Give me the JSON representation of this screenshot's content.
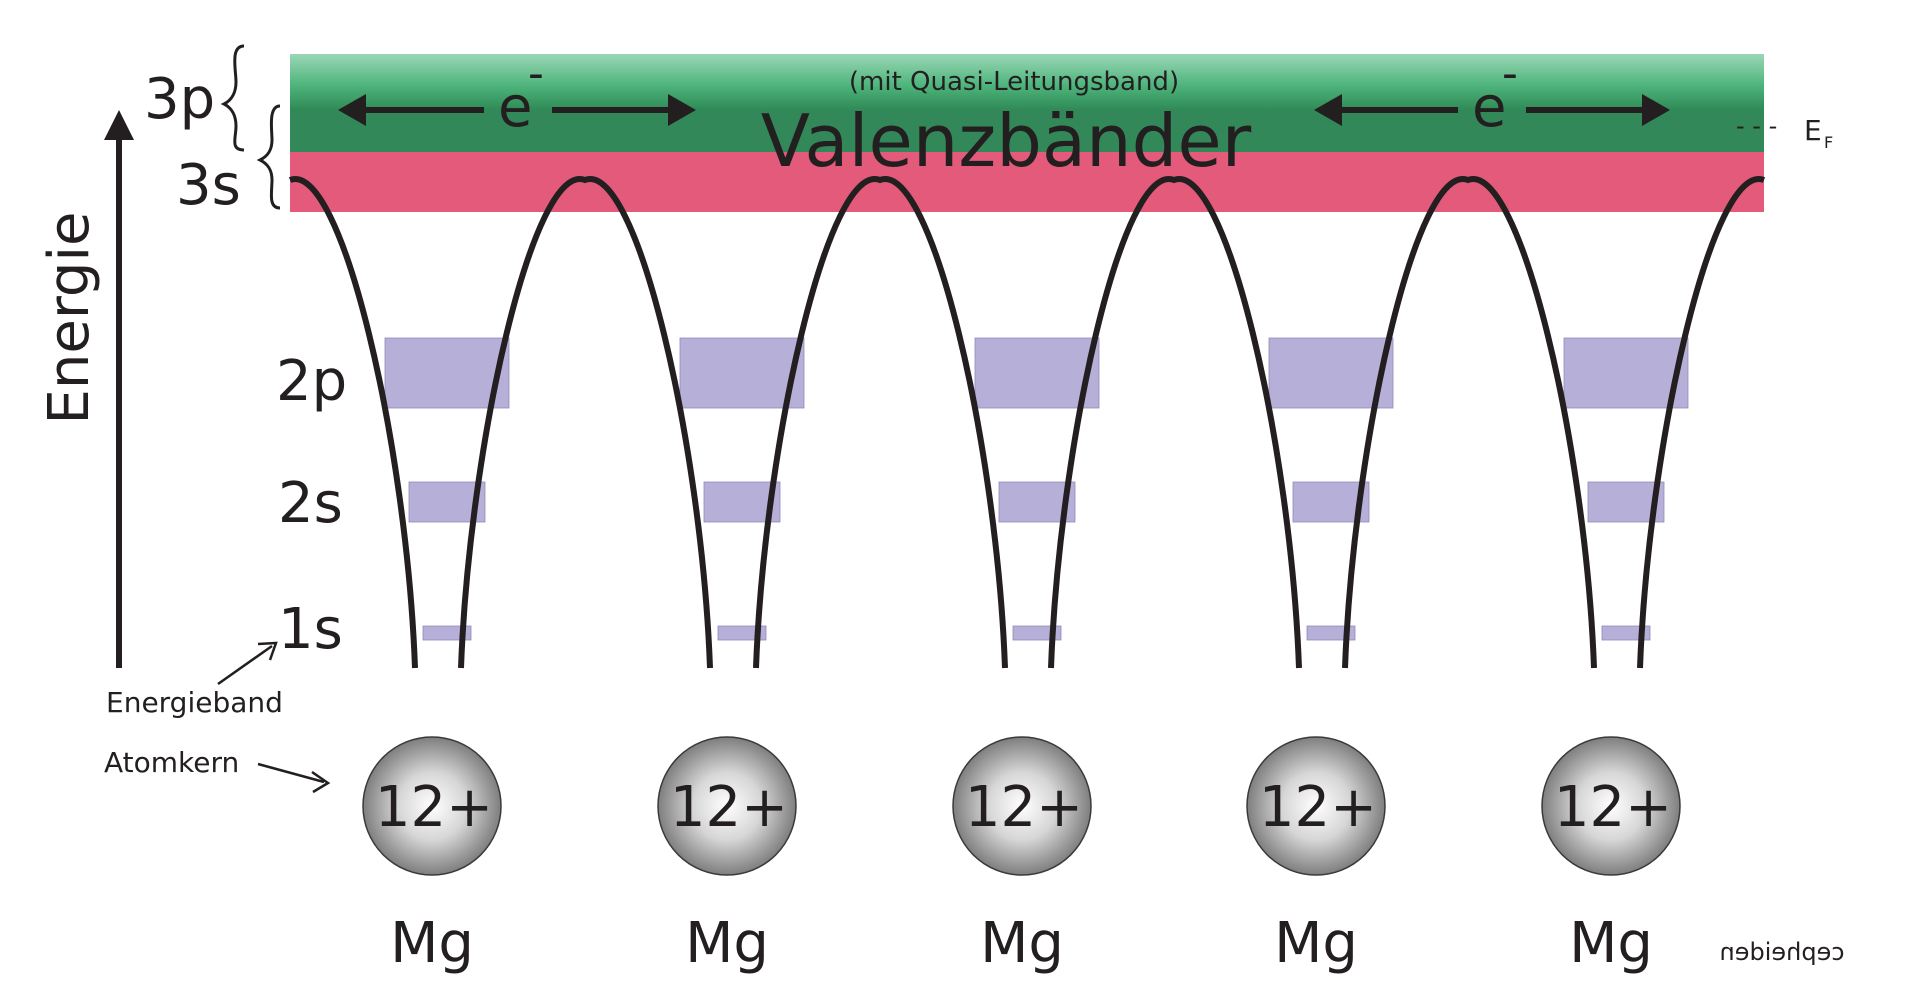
{
  "axis": {
    "label": "Energie"
  },
  "band_labels": {
    "p3": "3p",
    "s3": "3s",
    "p2": "2p",
    "s2": "2s",
    "s1": "1s"
  },
  "valence": {
    "title": "Valenzbänder",
    "subtitle": "(mit Quasi-Leitungsband)",
    "electron": "e",
    "electron_charge": "-"
  },
  "fermi": {
    "symbol": "E",
    "subscript": "F",
    "dashes": "- - -"
  },
  "annotations": {
    "energy_band": "Energieband",
    "nucleus": "Atomkern"
  },
  "atoms": [
    {
      "charge": "12+",
      "element": "Mg"
    },
    {
      "charge": "12+",
      "element": "Mg"
    },
    {
      "charge": "12+",
      "element": "Mg"
    },
    {
      "charge": "12+",
      "element": "Mg"
    },
    {
      "charge": "12+",
      "element": "Mg"
    }
  ],
  "signature": "cepheiden",
  "colors": {
    "band_3p_light": "#8ed0ac",
    "band_3p_dark": "#2f8a55",
    "band_3s": "#e35a7a",
    "core_band": "#b6b0d8",
    "line": "#231f20"
  }
}
